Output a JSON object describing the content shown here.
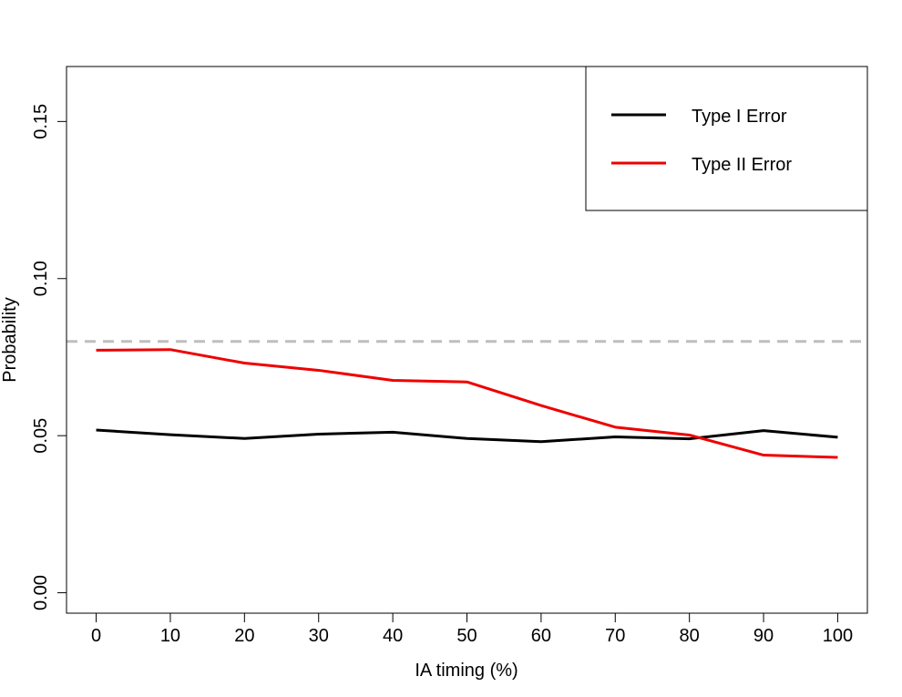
{
  "chart_data": {
    "type": "line",
    "title": "",
    "xlabel": "IA timing (%)",
    "ylabel": "Probability",
    "x": [
      0,
      10,
      20,
      30,
      40,
      50,
      60,
      70,
      80,
      90,
      100
    ],
    "xticks": [
      0,
      10,
      20,
      30,
      40,
      50,
      60,
      70,
      80,
      90,
      100
    ],
    "xtick_labels": [
      "0",
      "10",
      "20",
      "30",
      "40",
      "50",
      "60",
      "70",
      "80",
      "90",
      "100"
    ],
    "xlim": [
      -4,
      104
    ],
    "yticks": [
      0.0,
      0.05,
      0.1,
      0.15
    ],
    "ytick_labels": [
      "0.00",
      "0.05",
      "0.10",
      "0.15"
    ],
    "ylim": [
      -0.0065,
      0.1675
    ],
    "grid": false,
    "legend_position": "top-right",
    "series": [
      {
        "name": "Type I Error",
        "color": "#000000",
        "values": [
          0.0518,
          0.0503,
          0.0491,
          0.0505,
          0.0511,
          0.0491,
          0.0481,
          0.0496,
          0.049,
          0.0516,
          0.0495
        ]
      },
      {
        "name": "Type II Error",
        "color": "#ee0000",
        "values": [
          0.0772,
          0.0774,
          0.0731,
          0.0708,
          0.0676,
          0.0671,
          0.0596,
          0.0527,
          0.0502,
          0.0438,
          0.0431
        ]
      }
    ],
    "reference_line": {
      "y": 0.08,
      "color": "#bebebe",
      "style": "dashed"
    }
  }
}
